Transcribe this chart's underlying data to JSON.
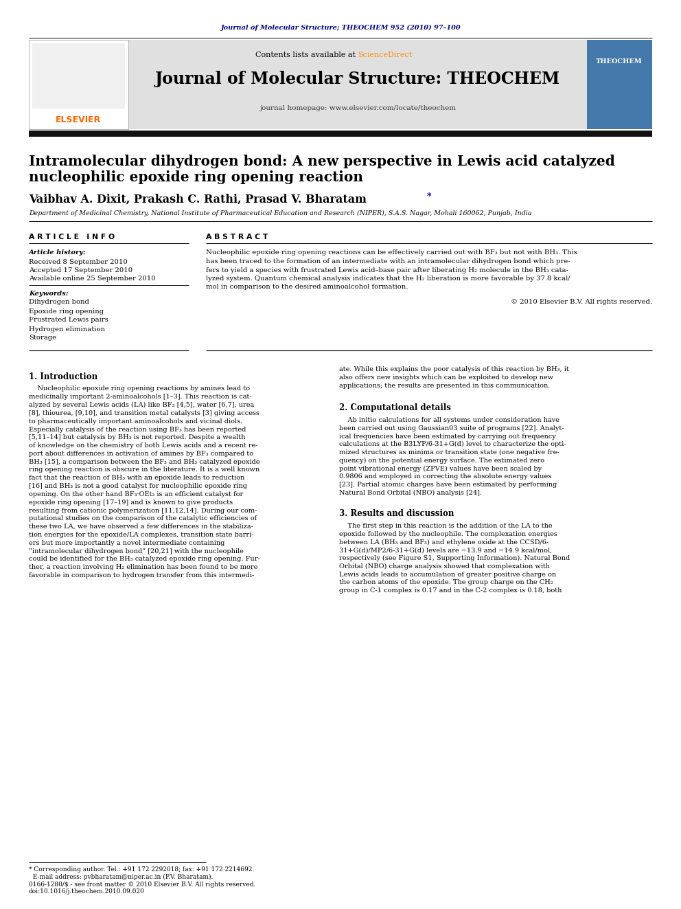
{
  "page_bg": "#ffffff",
  "header_journal_ref": "Journal of Molecular Structure; THEOCHEM 952 (2010) 97–100",
  "header_ref_color": "#00008B",
  "journal_name": "Journal of Molecular Structure: THEOCHEM",
  "journal_homepage": "journal homepage: www.elsevier.com/locate/theochem",
  "header_bg": "#e0e0e0",
  "title_line1": "Intramolecular dihydrogen bond: A new perspective in Lewis acid catalyzed",
  "title_line2": "nucleophilic epoxide ring opening reaction",
  "authors": "Vaibhav A. Dixit, Prakash C. Rathi, Prasad V. Bharatam",
  "affiliation": "Department of Medicinal Chemistry, National Institute of Pharmaceutical Education and Research (NIPER), S.A.S. Nagar, Mohali 160062, Punjab, India",
  "article_history_label": "Article history:",
  "received": "Received 8 September 2010",
  "accepted": "Accepted 17 September 2010",
  "available": "Available online 25 September 2010",
  "keywords_label": "Keywords:",
  "keywords": [
    "Dihydrogen bond",
    "Epoxide ring opening",
    "Frustrated Lewis pairs",
    "Hydrogen elimination",
    "Storage"
  ],
  "abstract_text_lines": [
    "Nucleophilic epoxide ring opening reactions can be effectively carried out with BF₃ but not with BH₃. This",
    "has been traced to the formation of an intermediate with an intramolecular dihydrogen bond which pre-",
    "fers to yield a species with frustrated Lewis acid–base pair after liberating H₂ molecule in the BH₃ cata-",
    "lyzed system. Quantum chemical analysis indicates that the H₂ liberation is more favorable by 37.8 kcal/",
    "mol in comparison to the desired aminoalcohol formation."
  ],
  "copyright": "© 2010 Elsevier B.V. All rights reserved.",
  "intro_heading": "1. Introduction",
  "intro_lines": [
    "    Nucleophilic epoxide ring opening reactions by amines lead to",
    "medicinally important 2-aminoalcohols [1–3]. This reaction is cat-",
    "alyzed by several Lewis acids (LA) like BF₃ [4,5], water [6,7], urea",
    "[8], thiourea, [9,10], and transition metal catalysts [3] giving access",
    "to pharmaceutically important aminoalcohols and vicinal diols.",
    "Especially catalysis of the reaction using BF₃ has been reported",
    "[5,11–14] but catalysis by BH₃ is not reported. Despite a wealth",
    "of knowledge on the chemistry of both Lewis acids and a recent re-",
    "port about differences in activation of amines by BF₃ compared to",
    "BH₃ [15], a comparison between the BF₃ and BH₃ catalyzed epoxide",
    "ring opening reaction is obscure in the literature. It is a well known",
    "fact that the reaction of BH₃ with an epoxide leads to reduction",
    "[16] and BH₃ is not a good catalyst for nucleophilic epoxide ring",
    "opening. On the other hand BF₃·OEt₂ is an efficient catalyst for",
    "epoxide ring opening [17–19] and is known to give products",
    "resulting from cationic polymerization [11,12,14]. During our com-",
    "putational studies on the comparison of the catalytic efficiencies of",
    "these two LA, we have observed a few differences in the stabiliza-",
    "tion energies for the epoxide/LA complexes, transition state barri-",
    "ers but more importantly a novel intermediate containing",
    "“intramolecular dihydrogen bond” [20,21] with the nucleophile",
    "could be identified for the BH₃ catalyzed epoxide ring opening. Fur-",
    "ther, a reaction involving H₂ elimination has been found to be more",
    "favorable in comparison to hydrogen transfer from this intermedi-"
  ],
  "right_top_lines": [
    "ate. While this explains the poor catalysis of this reaction by BH₃, it",
    "also offers new insights which can be exploited to develop new",
    "applications; the results are presented in this communication."
  ],
  "comp_heading": "2. Computational details",
  "comp_lines": [
    "    Ab initio calculations for all systems under consideration have",
    "been carried out using Gaussian03 suite of programs [22]. Analyt-",
    "ical frequencies have been estimated by carrying out frequency",
    "calculations at the B3LYP/6-31+G(d) level to characterize the opti-",
    "mized structures as minima or transition state (one negative fre-",
    "quency) on the potential energy surface. The estimated zero",
    "point vibrational energy (ZPVE) values have been scaled by",
    "0.9806 and employed in correcting the absolute energy values",
    "[23]. Partial atomic charges have been estimated by performing",
    "Natural Bond Orbital (NBO) analysis [24]."
  ],
  "results_heading": "3. Results and discussion",
  "results_lines": [
    "    The first step in this reaction is the addition of the LA to the",
    "epoxide followed by the nucleophile. The complexation energies",
    "between LA (BH₃ and BF₃) and ethylene oxide at the CCSD/6-",
    "31+G(d)/MP2/6-31+G(d) levels are −13.9 and −14.9 kcal/mol,",
    "respectively (see Figure S1, Supporting Information). Natural Bond",
    "Orbital (NBO) charge analysis showed that complexation with",
    "Lewis acids leads to accumulation of greater positive charge on",
    "the carbon atoms of the epoxide. The group charge on the CH₂",
    "group in C-1 complex is 0.17 and in the C-2 complex is 0.18, both"
  ],
  "footnote1": "* Corresponding author. Tel.: +91 172 2292018; fax: +91 172 2214692.",
  "footnote2": "  E-mail address: pvbharatam@niper.ac.in (P.V. Bharatam).",
  "footnote3": "0166-1280/$ - see front matter © 2010 Elsevier B.V. All rights reserved.",
  "footnote4": "doi:10.1016/j.theochem.2010.09.020",
  "elsevier_color": "#FF6600",
  "sciencedirect_color": "#FF8C00",
  "link_color": "#0000CD",
  "theochem_cover_color": "#4477AA"
}
